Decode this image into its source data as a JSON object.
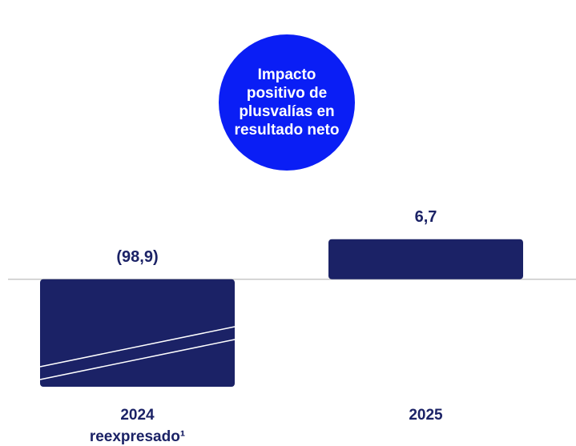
{
  "chart_data": {
    "type": "bar",
    "title": "Impacto positivo de plusvalías en resultado neto",
    "categories": [
      "2024 reexpresado¹",
      "2025"
    ],
    "values": [
      -98.9,
      6.7
    ],
    "value_labels": [
      "(98,9)",
      "6,7"
    ],
    "color": "#1b2266",
    "title_color": "#0a1ef5",
    "ylim": [
      -18,
      8
    ],
    "axis_break": true
  }
}
